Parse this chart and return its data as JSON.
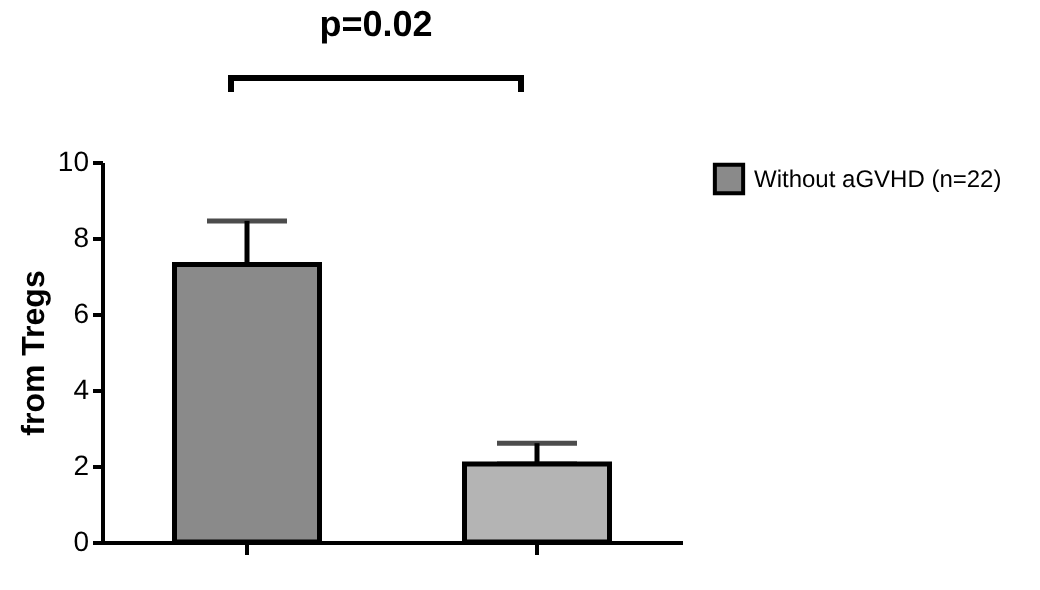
{
  "chart_data": {
    "type": "bar",
    "ylabel": "from Tregs",
    "annotations": [
      "p=0.02"
    ],
    "categories": [
      null,
      null
    ],
    "series": [
      {
        "name": "Without aGVHD (n=22)",
        "color": "#8a8a8a",
        "values": [
          7.3,
          null
        ],
        "errors": [
          [
            7.3,
            8.45
          ],
          null
        ]
      },
      {
        "color": "#b4b4b4",
        "values": [
          null,
          2.05
        ],
        "errors": [
          null,
          [
            2.05,
            2.6
          ]
        ]
      }
    ],
    "ylim": [
      0,
      10
    ],
    "yticks": [
      0,
      2,
      4,
      6,
      8,
      10
    ],
    "grid": false,
    "legend": "top right"
  }
}
